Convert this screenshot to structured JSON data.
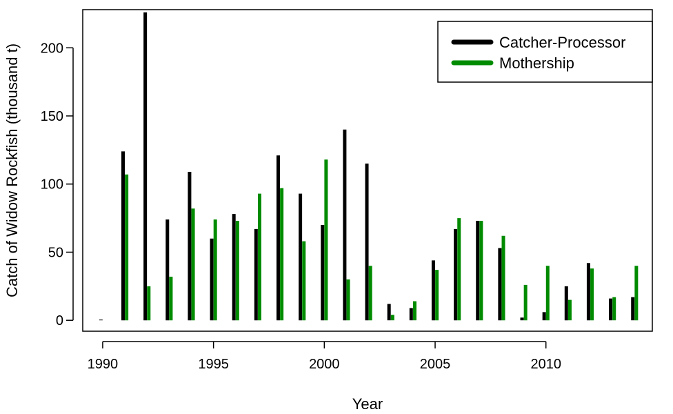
{
  "chart_data": {
    "type": "bar",
    "xlabel": "Year",
    "ylabel": "Catch of Widow Rockfish (thousand t)",
    "xlim": [
      1989.1,
      2014.8
    ],
    "ylim": [
      -8,
      228
    ],
    "x_ticks": [
      1990,
      1995,
      2000,
      2005,
      2010
    ],
    "y_ticks": [
      0,
      50,
      100,
      150,
      200
    ],
    "grid": false,
    "legend_position": "top-right",
    "x": [
      1990,
      1991,
      1992,
      1993,
      1994,
      1995,
      1996,
      1997,
      1998,
      1999,
      2000,
      2001,
      2002,
      2003,
      2004,
      2005,
      2006,
      2007,
      2008,
      2009,
      2010,
      2011,
      2012,
      2013,
      2014
    ],
    "series": [
      {
        "name": "Catcher-Processor",
        "color": "#000000",
        "values": [
          0.5,
          124,
          226,
          74,
          109,
          60,
          78,
          67,
          121,
          93,
          70,
          140,
          115,
          12,
          9,
          44,
          67,
          73,
          53,
          2,
          6,
          25,
          42,
          16,
          17
        ]
      },
      {
        "name": "Mothership",
        "color": "#008b00",
        "values": [
          0,
          107,
          25,
          32,
          82,
          74,
          73,
          93,
          97,
          58,
          118,
          30,
          40,
          4,
          14,
          37,
          75,
          73,
          62,
          26,
          40,
          15,
          38,
          17,
          40
        ]
      }
    ]
  }
}
